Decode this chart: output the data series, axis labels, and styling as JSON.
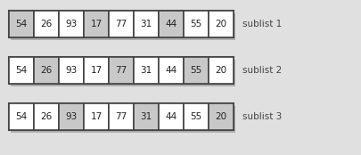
{
  "values": [
    54,
    26,
    93,
    17,
    77,
    31,
    44,
    55,
    20
  ],
  "sublists": [
    {
      "label": "sublist 1",
      "highlighted": [
        0,
        3,
        6
      ]
    },
    {
      "label": "sublist 2",
      "highlighted": [
        1,
        4,
        7
      ]
    },
    {
      "label": "sublist 3",
      "highlighted": [
        2,
        5,
        8
      ]
    }
  ],
  "fig_bg": "#e0e0e0",
  "cell_white": "#ffffff",
  "cell_gray": "#c8c8c8",
  "border_dark": "#444444",
  "border_outer": "#555555",
  "text_color": "#222222",
  "label_color": "#444444",
  "shadow_color": "#b0b0b0",
  "row_bg": "#f5f5f5"
}
